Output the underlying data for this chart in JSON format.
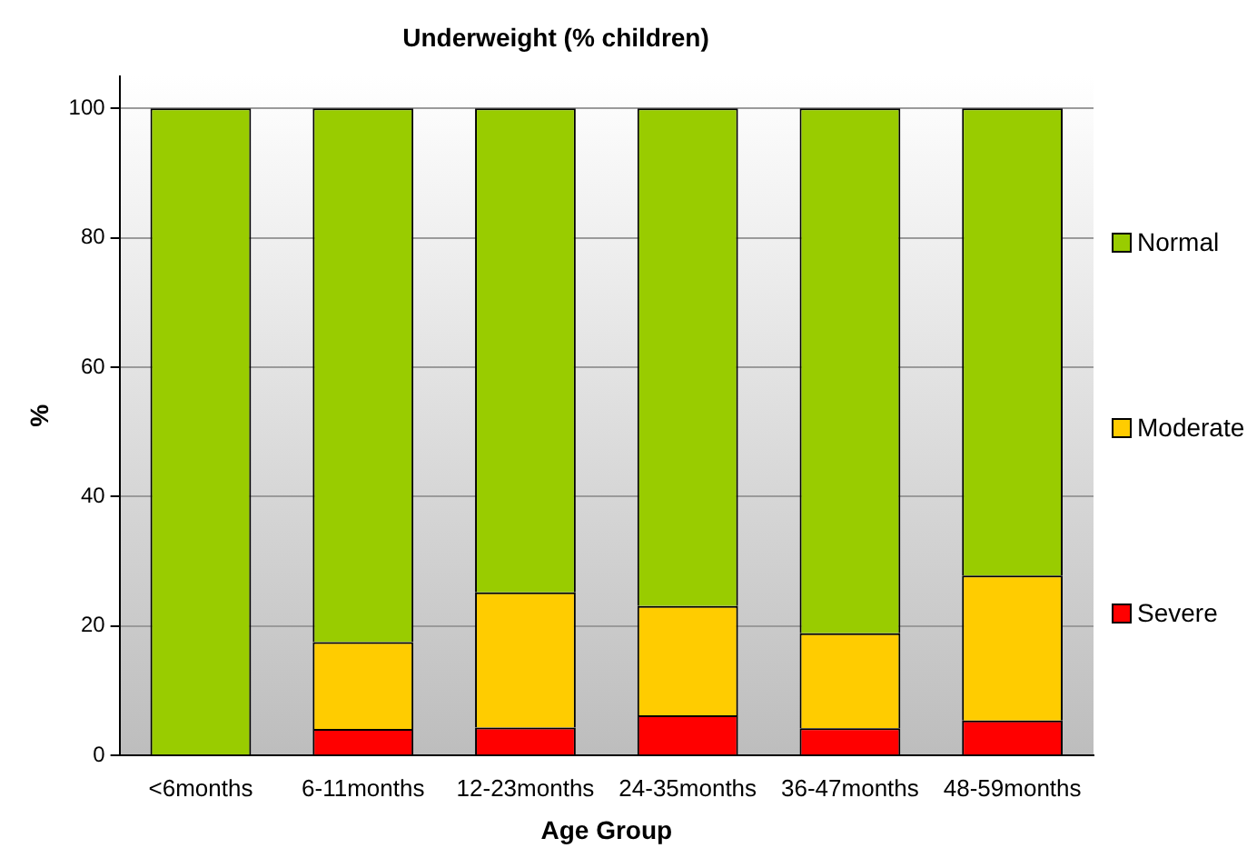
{
  "chart_data": {
    "type": "bar",
    "title": "Underweight (% children)",
    "xlabel": "Age Group",
    "ylabel": "%",
    "categories": [
      "<6months",
      "6-11months",
      "12-23months",
      "24-35months",
      "36-47months",
      "48-59months"
    ],
    "stacked": true,
    "series": [
      {
        "name": "Severe",
        "color": "#ff0000",
        "values": [
          0,
          4.1,
          4.3,
          6.2,
          4.2,
          5.4
        ]
      },
      {
        "name": "Moderate",
        "color": "#ffcc00",
        "values": [
          0,
          13.4,
          20.9,
          16.9,
          14.7,
          22.4
        ]
      },
      {
        "name": "Normal",
        "color": "#99cc00",
        "values": [
          100,
          82.5,
          74.8,
          76.9,
          81.1,
          72.2
        ]
      }
    ],
    "ylim": [
      0,
      105
    ],
    "yticks": [
      0,
      20,
      40,
      60,
      80,
      100
    ],
    "grid": "y",
    "legend": "right"
  }
}
